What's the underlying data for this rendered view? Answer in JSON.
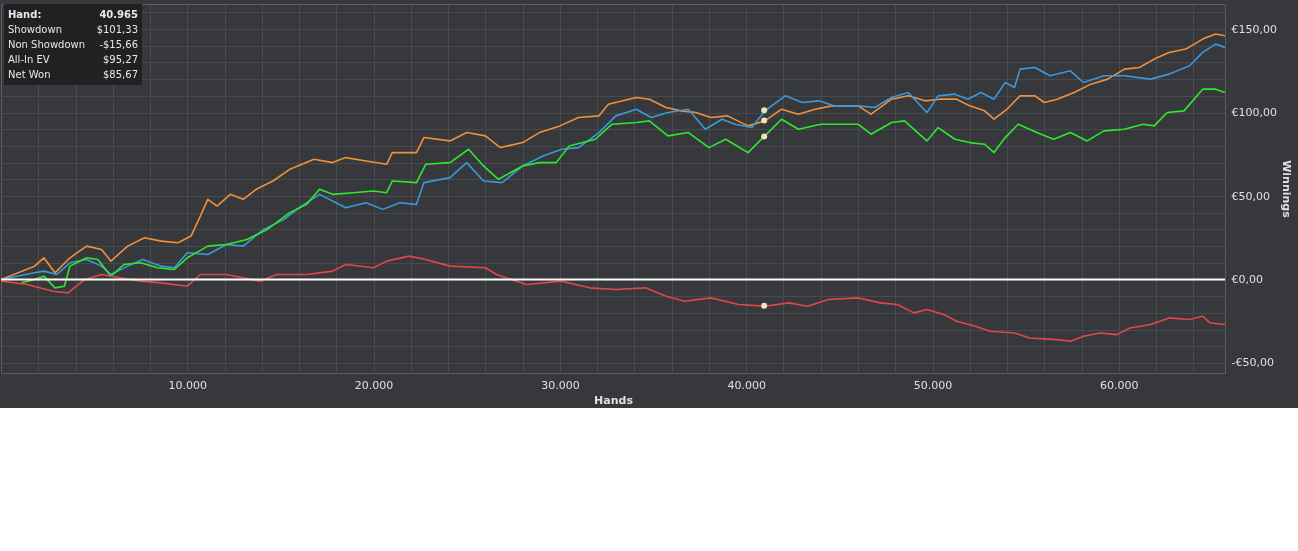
{
  "chart_data": {
    "type": "line",
    "xlabel": "Hands",
    "ylabel": "Winnings",
    "grid": true,
    "line_style": "solid",
    "xlim": [
      0,
      65700
    ],
    "ylim": [
      -56,
      165
    ],
    "xticks": [
      {
        "value": 2000,
        "label": null
      },
      {
        "value": 4000,
        "label": null
      },
      {
        "value": 6000,
        "label": null
      },
      {
        "value": 8000,
        "label": null
      },
      {
        "value": 10000,
        "label": "10.000"
      },
      {
        "value": 12000,
        "label": null
      },
      {
        "value": 14000,
        "label": null
      },
      {
        "value": 16000,
        "label": null
      },
      {
        "value": 18000,
        "label": null
      },
      {
        "value": 20000,
        "label": "20.000"
      },
      {
        "value": 22000,
        "label": null
      },
      {
        "value": 24000,
        "label": null
      },
      {
        "value": 26000,
        "label": null
      },
      {
        "value": 28000,
        "label": null
      },
      {
        "value": 30000,
        "label": "30.000"
      },
      {
        "value": 32000,
        "label": null
      },
      {
        "value": 34000,
        "label": null
      },
      {
        "value": 36000,
        "label": null
      },
      {
        "value": 38000,
        "label": null
      },
      {
        "value": 40000,
        "label": "40.000"
      },
      {
        "value": 42000,
        "label": null
      },
      {
        "value": 44000,
        "label": null
      },
      {
        "value": 46000,
        "label": null
      },
      {
        "value": 48000,
        "label": null
      },
      {
        "value": 50000,
        "label": "50.000"
      },
      {
        "value": 52000,
        "label": null
      },
      {
        "value": 54000,
        "label": null
      },
      {
        "value": 56000,
        "label": null
      },
      {
        "value": 58000,
        "label": null
      },
      {
        "value": 60000,
        "label": "60.000"
      },
      {
        "value": 62000,
        "label": null
      },
      {
        "value": 64000,
        "label": null
      }
    ],
    "yticks": [
      {
        "value": -50,
        "label": "-€50,00"
      },
      {
        "value": -40,
        "label": null
      },
      {
        "value": -30,
        "label": null
      },
      {
        "value": -20,
        "label": null
      },
      {
        "value": -10,
        "label": null
      },
      {
        "value": 0,
        "label": "€0,00"
      },
      {
        "value": 10,
        "label": null
      },
      {
        "value": 20,
        "label": null
      },
      {
        "value": 30,
        "label": null
      },
      {
        "value": 40,
        "label": null
      },
      {
        "value": 50,
        "label": "€50,00"
      },
      {
        "value": 60,
        "label": null
      },
      {
        "value": 70,
        "label": null
      },
      {
        "value": 80,
        "label": null
      },
      {
        "value": 90,
        "label": null
      },
      {
        "value": 100,
        "label": "€100,00"
      },
      {
        "value": 110,
        "label": null
      },
      {
        "value": 120,
        "label": null
      },
      {
        "value": 130,
        "label": null
      },
      {
        "value": 140,
        "label": null
      },
      {
        "value": 150,
        "label": "€150,00"
      },
      {
        "value": 160,
        "label": null
      }
    ],
    "ref_lines": [
      {
        "axis": "y",
        "value": 0,
        "label": null,
        "color": "#ffffff"
      }
    ],
    "annotations": [
      "Hand:",
      "40.965",
      "Showdown",
      "$101,33",
      "Non Showdown",
      "-$15,66",
      "All-In EV",
      "$95,27",
      "Net Won",
      "$85,67"
    ],
    "series": [
      {
        "color": "#f0913a",
        "x": [
          0,
          1800,
          2300,
          2900,
          3700,
          4600,
          5400,
          5900,
          6800,
          7700,
          8600,
          9500,
          10200,
          10700,
          11100,
          11600,
          12300,
          13000,
          13700,
          14600,
          15500,
          16800,
          17800,
          18500,
          19600,
          20700,
          21000,
          22300,
          22700,
          24100,
          25000,
          26000,
          26800,
          28000,
          28900,
          30000,
          31000,
          32100,
          32600,
          34100,
          34800,
          35700,
          36500,
          37300,
          38100,
          39000,
          40100,
          41000,
          41900,
          42800,
          43700,
          44600,
          46000,
          46700,
          47800,
          48700,
          49600,
          50400,
          51300,
          52000,
          52800,
          53300,
          54000,
          54700,
          55500,
          56000,
          56700,
          57600,
          58500,
          59400,
          60300,
          61100,
          61900,
          62700,
          63600,
          64500,
          65200,
          65700
        ],
        "values": [
          0,
          8,
          13,
          4,
          13,
          20,
          18,
          11,
          20,
          25,
          23,
          22,
          26,
          38,
          48,
          44,
          51,
          48,
          54,
          59,
          66,
          72,
          70,
          73,
          71,
          69,
          76,
          76,
          85,
          83,
          88,
          86,
          79,
          82,
          88,
          92,
          97,
          98,
          105,
          109,
          108,
          103,
          101,
          100,
          97,
          98,
          92,
          95,
          102,
          99,
          102,
          104,
          104,
          99,
          108,
          110,
          107,
          108,
          108,
          104,
          101,
          96,
          102,
          110,
          110,
          106,
          108,
          112,
          117,
          120,
          126,
          127,
          132,
          136,
          138,
          144,
          147,
          146
        ]
      },
      {
        "color": "#3a9ad9",
        "x": [
          0,
          1800,
          2300,
          3000,
          3700,
          4600,
          5400,
          5900,
          6800,
          7600,
          8600,
          9300,
          10000,
          11100,
          12100,
          13000,
          14100,
          15200,
          16000,
          17100,
          18500,
          19600,
          20500,
          21400,
          22300,
          22700,
          24100,
          25000,
          25900,
          26900,
          28000,
          29100,
          30100,
          31000,
          32100,
          33000,
          34100,
          34900,
          35800,
          36900,
          37800,
          38700,
          39400,
          40300,
          41000,
          42100,
          43000,
          43900,
          44700,
          46000,
          46900,
          47800,
          48700,
          49700,
          50300,
          51200,
          51900,
          52600,
          53300,
          53900,
          54400,
          54700,
          55500,
          56300,
          57400,
          58100,
          59200,
          60300,
          61700,
          62700,
          63800,
          64500,
          65200,
          65700
        ],
        "values": [
          0,
          4,
          5,
          3,
          10,
          12,
          8,
          3,
          8,
          12,
          8,
          7,
          16,
          15,
          21,
          20,
          30,
          36,
          43,
          51,
          43,
          46,
          42,
          46,
          45,
          58,
          61,
          70,
          59,
          58,
          68,
          74,
          78,
          79,
          88,
          98,
          102,
          97,
          100,
          102,
          90,
          96,
          93,
          91,
          101,
          110,
          106,
          107,
          104,
          104,
          103,
          109,
          112,
          100,
          110,
          111,
          108,
          112,
          108,
          118,
          115,
          126,
          127,
          122,
          125,
          118,
          122,
          122,
          120,
          123,
          128,
          136,
          141,
          139
        ]
      },
      {
        "color": "#2ee82e",
        "x": [
          1100,
          1800,
          2300,
          2900,
          3400,
          3700,
          4600,
          5200,
          5900,
          6600,
          7500,
          8400,
          9300,
          10000,
          11100,
          12100,
          13200,
          14300,
          15500,
          16400,
          17100,
          17800,
          18900,
          20000,
          20700,
          21000,
          22300,
          22800,
          24100,
          25100,
          25900,
          26700,
          28000,
          28900,
          29800,
          30500,
          31900,
          32800,
          34100,
          34800,
          35800,
          36900,
          38000,
          38900,
          40100,
          41000,
          41900,
          42800,
          44000,
          46000,
          46700,
          47800,
          48500,
          49200,
          49700,
          50300,
          51200,
          52000,
          52800,
          53300,
          53900,
          54600,
          55600,
          56500,
          57400,
          58300,
          59200,
          60300,
          61300,
          61900,
          62600,
          63500,
          64500,
          65200,
          65700
        ],
        "values": [
          -2,
          0,
          2,
          -5,
          -4,
          8,
          13,
          12,
          2,
          9,
          10,
          7,
          6,
          13,
          20,
          21,
          24,
          30,
          40,
          45,
          54,
          51,
          52,
          53,
          52,
          59,
          58,
          69,
          70,
          78,
          68,
          60,
          68,
          70,
          70,
          80,
          84,
          93,
          94,
          95,
          86,
          88,
          79,
          84,
          76,
          86,
          96,
          90,
          93,
          93,
          87,
          94,
          95,
          88,
          83,
          91,
          84,
          82,
          81,
          76,
          85,
          93,
          88,
          84,
          88,
          83,
          89,
          90,
          93,
          92,
          100,
          101,
          114,
          114,
          112
        ]
      },
      {
        "color": "#e04848",
        "x": [
          0,
          1400,
          2800,
          3600,
          4500,
          5400,
          6400,
          7500,
          8600,
          10000,
          10700,
          12100,
          13900,
          14800,
          16400,
          17800,
          18500,
          20000,
          20700,
          21900,
          22800,
          24100,
          26000,
          26600,
          28200,
          30100,
          31600,
          33000,
          34600,
          35700,
          36700,
          38100,
          39600,
          41000,
          42300,
          43300,
          44400,
          46000,
          47200,
          48100,
          49000,
          49700,
          50600,
          51300,
          52300,
          53100,
          54400,
          55200,
          56700,
          57400,
          58100,
          59000,
          59900,
          60600,
          61700,
          62700,
          63800,
          64500,
          64900,
          65700
        ],
        "values": [
          -1,
          -3,
          -7,
          -8,
          0,
          3,
          1,
          -1,
          -2,
          -4,
          3,
          3,
          -1,
          3,
          3,
          5,
          9,
          7,
          11,
          14,
          12,
          8,
          7,
          3,
          -3,
          -1,
          -5,
          -6,
          -5,
          -10,
          -13,
          -11,
          -15,
          -16,
          -14,
          -16,
          -12,
          -11,
          -14,
          -15,
          -20,
          -18,
          -21,
          -25,
          -28,
          -31,
          -32,
          -35,
          -36,
          -37,
          -34,
          -32,
          -33,
          -29,
          -27,
          -23,
          -24,
          -22,
          -26,
          -27
        ]
      },
      {
        "type": "scatter",
        "marker": "circle",
        "color": "#f3e2c0",
        "x": [
          40965,
          40965,
          40965,
          40965
        ],
        "values": [
          101.33,
          -15.66,
          95.27,
          85.67
        ]
      }
    ]
  }
}
